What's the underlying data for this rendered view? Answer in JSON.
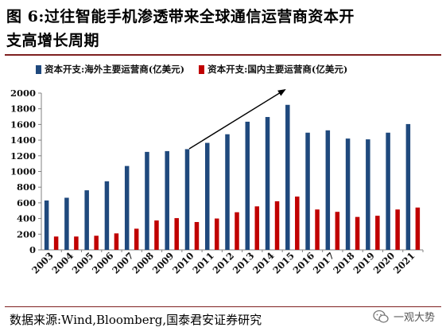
{
  "title": {
    "line1": "图 6:过往智能手机渗透带来全球通信运营商资本开",
    "line2": "支高增长周期"
  },
  "chart_data": {
    "type": "bar",
    "categories": [
      "2003",
      "2004",
      "2005",
      "2006",
      "2007",
      "2008",
      "2009",
      "2010",
      "2011",
      "2012",
      "2013",
      "2014",
      "2015",
      "2016",
      "2017",
      "2018",
      "2019",
      "2020",
      "2021"
    ],
    "series": [
      {
        "name": "资本开支:海外主要运营商(亿美元)",
        "color": "#1f497d",
        "values": [
          630,
          665,
          760,
          875,
          1070,
          1250,
          1260,
          1285,
          1365,
          1475,
          1635,
          1695,
          1850,
          1495,
          1525,
          1420,
          1410,
          1495,
          1605
        ]
      },
      {
        "name": "资本开支:国内主要运营商(亿美元)",
        "color": "#c00000",
        "values": [
          170,
          170,
          180,
          210,
          270,
          375,
          405,
          355,
          400,
          480,
          555,
          620,
          680,
          515,
          485,
          420,
          435,
          515,
          540
        ]
      }
    ],
    "ylim": [
      0,
      2000
    ],
    "yticks": [
      0,
      200,
      400,
      600,
      800,
      1000,
      1200,
      1400,
      1600,
      1800,
      2000
    ],
    "xlabel": "",
    "ylabel": "",
    "grid": false,
    "legend_position": "top",
    "annotation": "upward-trend-arrow"
  },
  "source": "数据来源:Wind,Bloomberg,国泰君安证券研究",
  "watermark": {
    "label": "一观大势",
    "icon": "wechat-icon"
  }
}
